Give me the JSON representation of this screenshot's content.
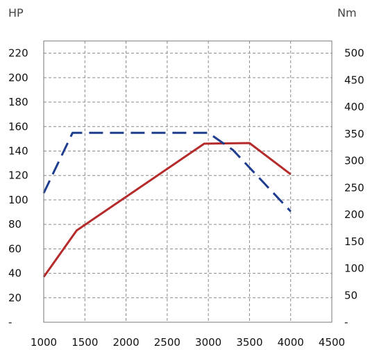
{
  "chart_data": {
    "type": "line",
    "left_unit": "HP",
    "right_unit": "Nm",
    "x": {
      "ticks": [
        1000,
        1500,
        2000,
        2500,
        3000,
        3500,
        4000,
        4500
      ],
      "range": [
        1000,
        4500
      ]
    },
    "y_left": {
      "ticks": [
        0,
        20,
        40,
        60,
        80,
        100,
        120,
        140,
        160,
        180,
        200,
        220
      ],
      "tick_labels": [
        "-",
        "20",
        "40",
        "60",
        "80",
        "100",
        "120",
        "140",
        "160",
        "180",
        "200",
        "220"
      ],
      "range": [
        0,
        230
      ]
    },
    "y_right": {
      "ticks": [
        0,
        50,
        100,
        150,
        200,
        250,
        300,
        350,
        400,
        450,
        500
      ],
      "tick_labels": [
        "-",
        "50",
        "100",
        "150",
        "200",
        "250",
        "300",
        "350",
        "400",
        "450",
        "500"
      ],
      "range": [
        0,
        522.7
      ]
    },
    "grid": true,
    "series": [
      {
        "axis": "left",
        "color": "#b52a2a",
        "style": "solid",
        "points": [
          [
            1000,
            37
          ],
          [
            1400,
            75
          ],
          [
            2950,
            146
          ],
          [
            3500,
            146.5
          ],
          [
            4000,
            121
          ]
        ]
      },
      {
        "axis": "right",
        "color": "#1f3d8f",
        "style": "dashed",
        "points": [
          [
            1000,
            240
          ],
          [
            1350,
            352
          ],
          [
            3000,
            352
          ],
          [
            3300,
            320
          ],
          [
            4000,
            206
          ]
        ]
      }
    ]
  }
}
